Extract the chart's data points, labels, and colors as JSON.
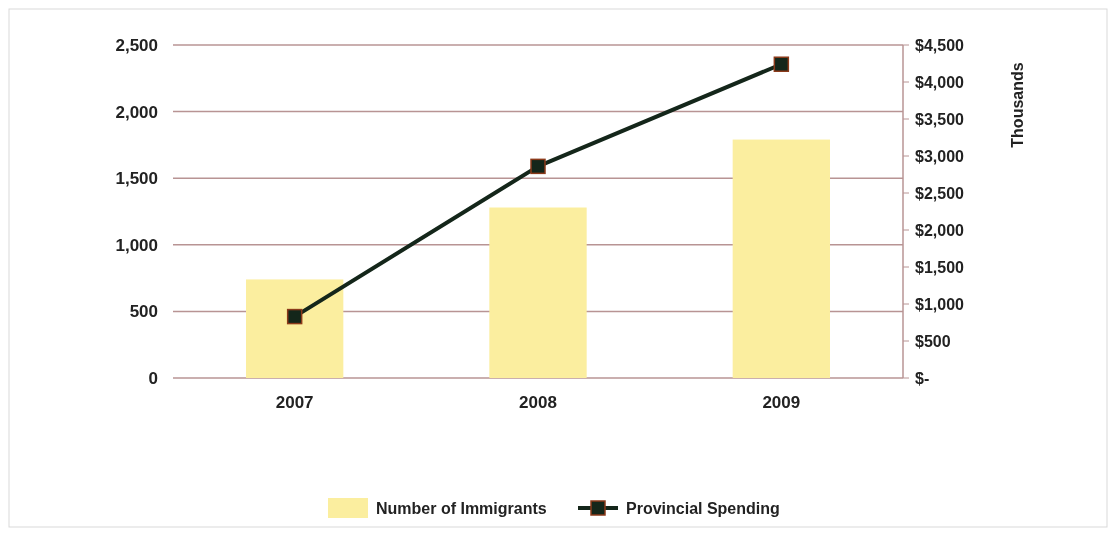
{
  "chart_data": {
    "type": "bar",
    "categories": [
      "2007",
      "2008",
      "2009"
    ],
    "series": [
      {
        "name": "Number of Immigrants",
        "color": "#fbee9f",
        "values": [
          740,
          1280,
          1790
        ]
      },
      {
        "name": "Provincial Spending",
        "type": "line",
        "axis": "y2",
        "color": "#14261a",
        "marker": "square",
        "values": [
          830,
          2860,
          4240
        ]
      }
    ],
    "y2label": "Thousands",
    "ylim": [
      0,
      2500
    ],
    "yticks": [
      0,
      {
        "value": 500,
        "label": "500"
      },
      {
        "value": 1000,
        "label": "1,000"
      },
      {
        "value": 1500,
        "label": "1,500"
      },
      {
        "value": 2000,
        "label": "2,000"
      },
      {
        "value": 2500,
        "label": "2,500"
      }
    ],
    "y2lim": [
      0,
      4500
    ],
    "y2ticks": [
      {
        "value": 0,
        "label": "$-"
      },
      {
        "value": 500,
        "label": "$500"
      },
      {
        "value": 1000,
        "label": "$1,000"
      },
      {
        "value": 1500,
        "label": "$1,500"
      },
      {
        "value": 2000,
        "label": "$2,000"
      },
      {
        "value": 2500,
        "label": "$2,500"
      },
      {
        "value": 3000,
        "label": "$3,000"
      },
      {
        "value": 3500,
        "label": "$3,500"
      },
      {
        "value": 4000,
        "label": "$4,000"
      },
      {
        "value": 4500,
        "label": "$4,500"
      }
    ],
    "grid": "y",
    "legend": "bottom"
  }
}
